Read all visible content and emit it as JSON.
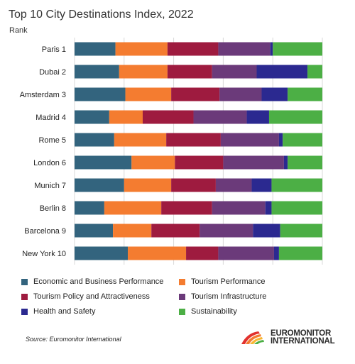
{
  "chart_data": {
    "type": "bar",
    "orientation": "horizontal",
    "stacked": true,
    "title": "Top 10 City Destinations Index, 2022",
    "ylabel": "Rank",
    "xlim": [
      0,
      100
    ],
    "grid": true,
    "legend_position": "bottom",
    "categories": [
      "Paris 1",
      "Dubai 2",
      "Amsterdam 3",
      "Madrid 4",
      "Rome 5",
      "London 6",
      "Munich 7",
      "Berlin 8",
      "Barcelona 9",
      "New York 10"
    ],
    "series": [
      {
        "name": "Economic and Business Performance",
        "color": "#33647e",
        "values": [
          16.5,
          18,
          20.5,
          14,
          16,
          23,
          20,
          12,
          15.5,
          21.5
        ]
      },
      {
        "name": "Tourism Performance",
        "color": "#f47c30",
        "values": [
          21,
          19.5,
          18.5,
          13.5,
          21,
          17.5,
          19,
          23,
          15.5,
          23.5
        ]
      },
      {
        "name": "Tourism Policy and Attractiveness",
        "color": "#9e1b3f",
        "values": [
          20.5,
          18,
          19.5,
          20.5,
          22,
          19.5,
          18,
          20.5,
          19.5,
          13
        ]
      },
      {
        "name": "Tourism Infrastructure",
        "color": "#6b3a7a",
        "values": [
          21,
          18,
          17,
          21.5,
          23.5,
          24.5,
          14.5,
          21.5,
          21.5,
          22.5
        ]
      },
      {
        "name": "Health and Safety",
        "color": "#2b2990",
        "values": [
          1,
          20.5,
          10.5,
          9,
          1.5,
          1.5,
          8,
          2.5,
          11,
          2
        ]
      },
      {
        "name": "Sustainability",
        "color": "#4caf45",
        "values": [
          20,
          6,
          14,
          21.5,
          16,
          14,
          20.5,
          20.5,
          17,
          17.5
        ]
      }
    ],
    "source": "Source: Euromonitor International"
  },
  "logo": {
    "line1": "EUROMONITOR",
    "line2": "INTERNATIONAL"
  }
}
